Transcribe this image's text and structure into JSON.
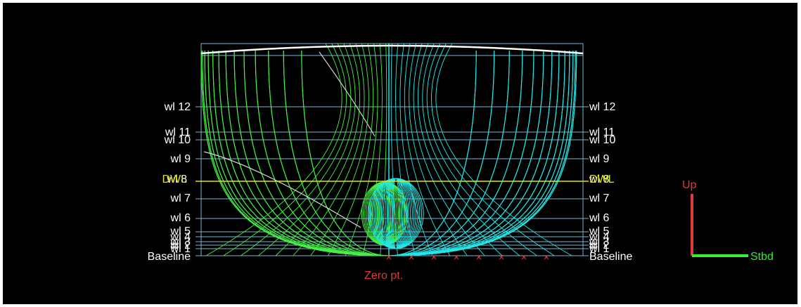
{
  "view": {
    "background": "#000000",
    "port_color": "#44f044",
    "starboard_color": "#22e8e8",
    "waterline_color": "#7ab4d0",
    "dwl_color": "#e6e600",
    "outline_color": "#ffffff",
    "marker_color": "#e03a3a"
  },
  "waterlines": {
    "left_labels": [
      "wl 12",
      "wl 11",
      "wl 10",
      "wl 9",
      "wl 7",
      "wl 6",
      "wl 5",
      "wl 4",
      "wl 3",
      "wl 2",
      "wl 1"
    ],
    "right_labels": [
      "wl 12",
      "wl 11",
      "wl 10",
      "wl 9",
      "wl 7",
      "wl 6",
      "wl 5",
      "wl 4",
      "wl 3",
      "wl 2",
      "wl 1"
    ],
    "wl8_label": "wl 8",
    "dwl_label": "DWL",
    "baseline_label": "Baseline"
  },
  "zero_point_label": "Zero pt.",
  "axes": {
    "up_label": "Up",
    "stbd_label": "Stbd",
    "up_color": "#e03a3a",
    "stbd_color": "#33ee33"
  }
}
